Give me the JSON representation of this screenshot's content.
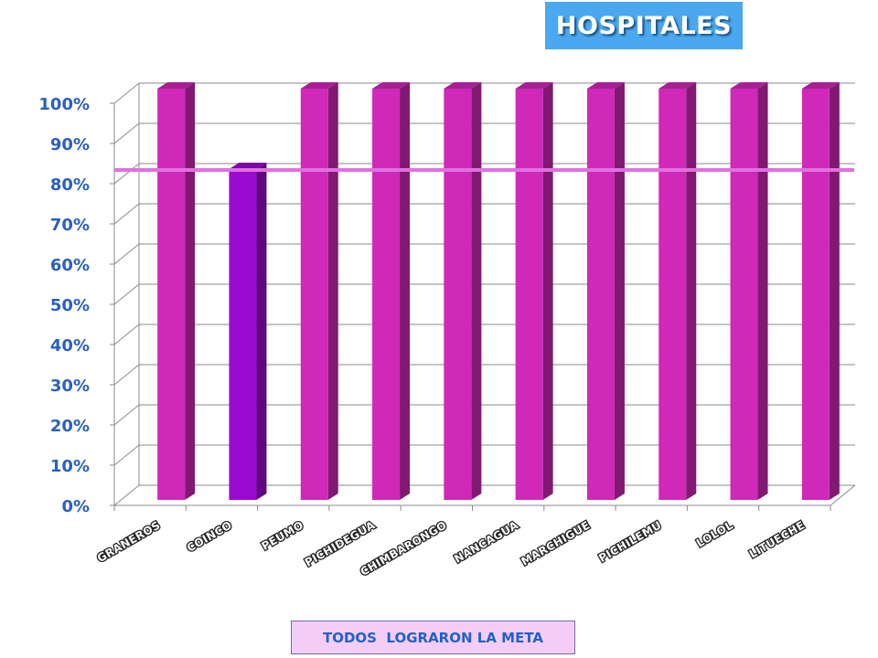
{
  "header": {
    "title": "HOSPITALES"
  },
  "footer": {
    "note": "TODOS  LOGRARON LA META"
  },
  "colors": {
    "bar": "#d028b8",
    "bar_highlight": "#9b0ad0",
    "goal_line": "#e070e0",
    "axis_label": "#2a5fbf",
    "title_bg": "#4aa8f0",
    "note_bg": "#f4cdf6",
    "note_text": "#1f62c8"
  },
  "chart_data": {
    "type": "bar",
    "categories": [
      "GRANEROS",
      "COINCO",
      "PEUMO",
      "PICHIDEGUA",
      "CHIMBARONGO",
      "NANCAGUA",
      "MARCHIGUE",
      "PICHILEMU",
      "LOLOL",
      "LITUECHE"
    ],
    "values": [
      100,
      80,
      100,
      100,
      100,
      100,
      100,
      100,
      100,
      100
    ],
    "highlight_category": "COINCO",
    "goal": 80,
    "ylim": [
      0,
      100
    ],
    "yticks": [
      "0%",
      "10%",
      "20%",
      "30%",
      "40%",
      "50%",
      "60%",
      "70%",
      "80%",
      "90%",
      "100%"
    ],
    "grid": true,
    "style": "3d-column"
  }
}
